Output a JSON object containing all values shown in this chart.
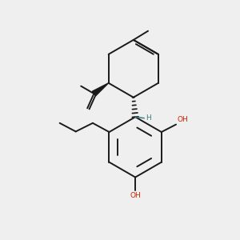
{
  "background_color": "#efefef",
  "bond_color": "#1a1a1a",
  "oh_color": "#cc2200",
  "teal_color": "#3a8080",
  "figsize": [
    3.0,
    3.0
  ],
  "dpi": 100,
  "lw": 1.4,
  "xlim": [
    0,
    10
  ],
  "ylim": [
    0,
    10
  ]
}
